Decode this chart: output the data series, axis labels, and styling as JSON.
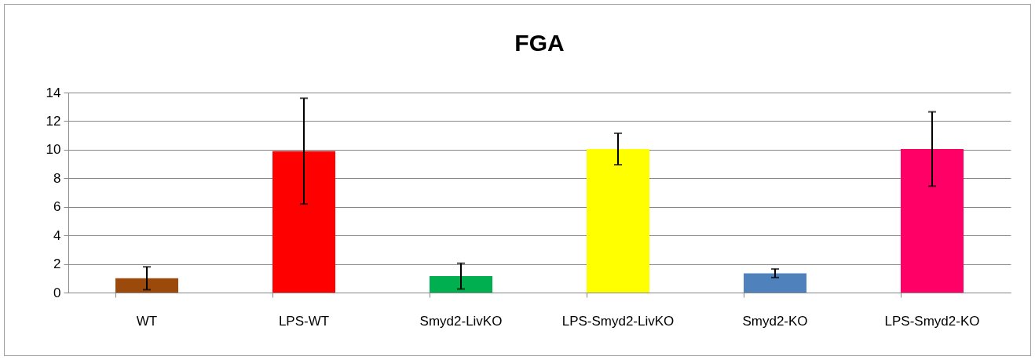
{
  "chart_data": {
    "type": "bar",
    "title": "FGA",
    "categories": [
      "WT",
      "LPS-WT",
      "Smyd2-LivKO",
      "LPS-Smyd2-LivKO",
      "Smyd2-KO",
      "LPS-Smyd2-KO"
    ],
    "values": [
      1.0,
      9.9,
      1.15,
      10.05,
      1.35,
      10.05
    ],
    "errors": [
      0.8,
      3.7,
      0.9,
      1.1,
      0.3,
      2.6
    ],
    "colors": [
      "#9c4a0c",
      "#ff0000",
      "#00b050",
      "#ffff00",
      "#4f81bd",
      "#ff0066"
    ],
    "ylim": [
      0,
      14
    ],
    "yticks": [
      0,
      2,
      4,
      6,
      8,
      10,
      12,
      14
    ],
    "grid": "y"
  }
}
